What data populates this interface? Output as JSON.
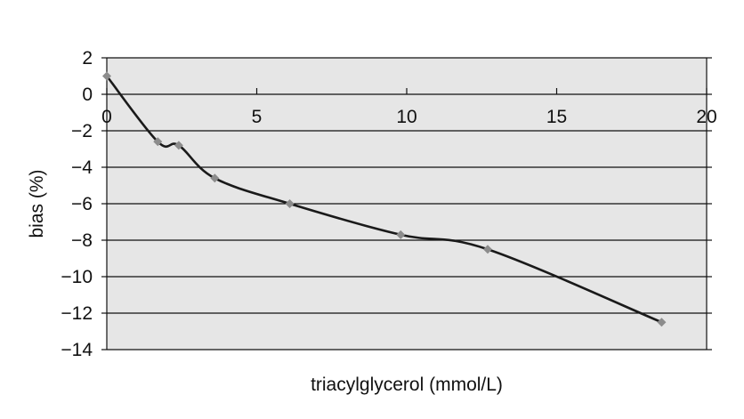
{
  "chart_data": {
    "type": "line",
    "title": "",
    "xlabel": "triacylglycerol (mmol/L)",
    "ylabel": "bias (%)",
    "xlim": [
      0,
      20
    ],
    "ylim": [
      -14,
      2
    ],
    "xticks": [
      0,
      5,
      10,
      15,
      20
    ],
    "yticks": [
      2,
      0,
      -2,
      -4,
      -6,
      -8,
      -10,
      -12,
      -14
    ],
    "x_tick_position": "along y = 0 line",
    "grid": "horizontal",
    "legend": "none",
    "series": [
      {
        "x": [
          0.0,
          1.7,
          2.4,
          3.6,
          6.1,
          9.8,
          12.7,
          18.5
        ],
        "y": [
          1.0,
          -2.6,
          -2.8,
          -4.6,
          -6.0,
          -7.7,
          -8.5,
          -12.5
        ],
        "marker": "diamond",
        "smooth": true
      }
    ],
    "colors": {
      "plot_background": "#e6e6e6",
      "line": "#1a1a1a",
      "marker": "#8c8c8c",
      "grid": "#111111"
    }
  }
}
